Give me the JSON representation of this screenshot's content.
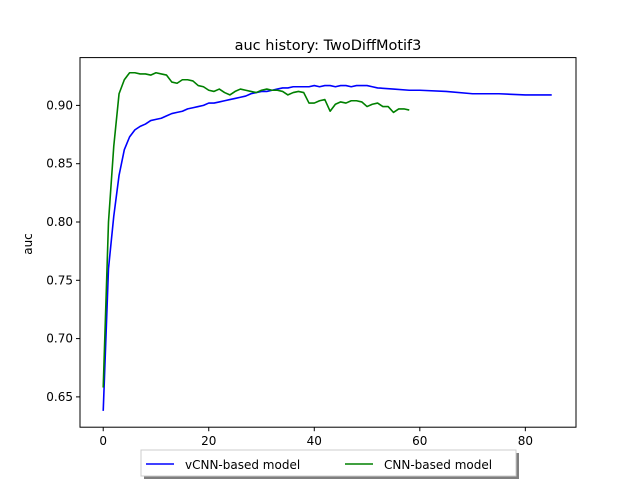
{
  "chart_data": {
    "type": "line",
    "title": "auc history:  TwoDiffMotif3",
    "xlabel": "",
    "ylabel": "auc",
    "xlim": [
      -4.4,
      89.6
    ],
    "ylim": [
      0.624,
      0.941
    ],
    "xticks": [
      0,
      20,
      40,
      60,
      80
    ],
    "yticks": [
      0.65,
      0.7,
      0.75,
      0.8,
      0.85,
      0.9
    ],
    "xtick_labels": [
      "0",
      "20",
      "40",
      "60",
      "80"
    ],
    "ytick_labels": [
      "0.65",
      "0.70",
      "0.75",
      "0.80",
      "0.85",
      "0.90"
    ],
    "grid": false,
    "legend_position": "bottom-center-outside",
    "series": [
      {
        "name": "vCNN-based model",
        "color": "#0000ff",
        "x": [
          0,
          1,
          2,
          3,
          4,
          5,
          6,
          7,
          8,
          9,
          10,
          11,
          12,
          13,
          14,
          15,
          16,
          17,
          18,
          19,
          20,
          21,
          22,
          23,
          24,
          25,
          26,
          27,
          28,
          29,
          30,
          31,
          32,
          33,
          34,
          35,
          36,
          37,
          38,
          39,
          40,
          41,
          42,
          43,
          44,
          45,
          46,
          47,
          48,
          49,
          50,
          51,
          52,
          55,
          58,
          60,
          65,
          70,
          75,
          80,
          85
        ],
        "y": [
          0.638,
          0.76,
          0.805,
          0.84,
          0.862,
          0.873,
          0.879,
          0.882,
          0.884,
          0.887,
          0.888,
          0.889,
          0.891,
          0.893,
          0.894,
          0.895,
          0.897,
          0.898,
          0.899,
          0.9,
          0.902,
          0.902,
          0.903,
          0.904,
          0.905,
          0.906,
          0.907,
          0.908,
          0.91,
          0.911,
          0.912,
          0.912,
          0.913,
          0.914,
          0.915,
          0.915,
          0.916,
          0.916,
          0.916,
          0.916,
          0.917,
          0.916,
          0.917,
          0.917,
          0.916,
          0.917,
          0.917,
          0.916,
          0.917,
          0.917,
          0.917,
          0.916,
          0.915,
          0.914,
          0.913,
          0.913,
          0.912,
          0.91,
          0.91,
          0.909,
          0.909
        ]
      },
      {
        "name": "CNN-based model",
        "color": "#008000",
        "x": [
          0,
          1,
          2,
          3,
          4,
          5,
          6,
          7,
          8,
          9,
          10,
          11,
          12,
          13,
          14,
          15,
          16,
          17,
          18,
          19,
          20,
          21,
          22,
          23,
          24,
          25,
          26,
          27,
          28,
          29,
          30,
          31,
          32,
          33,
          34,
          35,
          36,
          37,
          38,
          39,
          40,
          41,
          42,
          43,
          44,
          45,
          46,
          47,
          48,
          49,
          50,
          51,
          52,
          53,
          54,
          55,
          56,
          57,
          58
        ],
        "y": [
          0.658,
          0.8,
          0.865,
          0.91,
          0.922,
          0.928,
          0.928,
          0.927,
          0.927,
          0.926,
          0.928,
          0.927,
          0.926,
          0.92,
          0.919,
          0.922,
          0.922,
          0.921,
          0.917,
          0.916,
          0.913,
          0.912,
          0.914,
          0.911,
          0.909,
          0.912,
          0.914,
          0.913,
          0.912,
          0.911,
          0.913,
          0.914,
          0.913,
          0.913,
          0.912,
          0.909,
          0.911,
          0.912,
          0.911,
          0.902,
          0.902,
          0.904,
          0.905,
          0.895,
          0.901,
          0.903,
          0.902,
          0.904,
          0.904,
          0.903,
          0.899,
          0.901,
          0.902,
          0.899,
          0.899,
          0.894,
          0.897,
          0.897,
          0.896
        ]
      }
    ]
  }
}
